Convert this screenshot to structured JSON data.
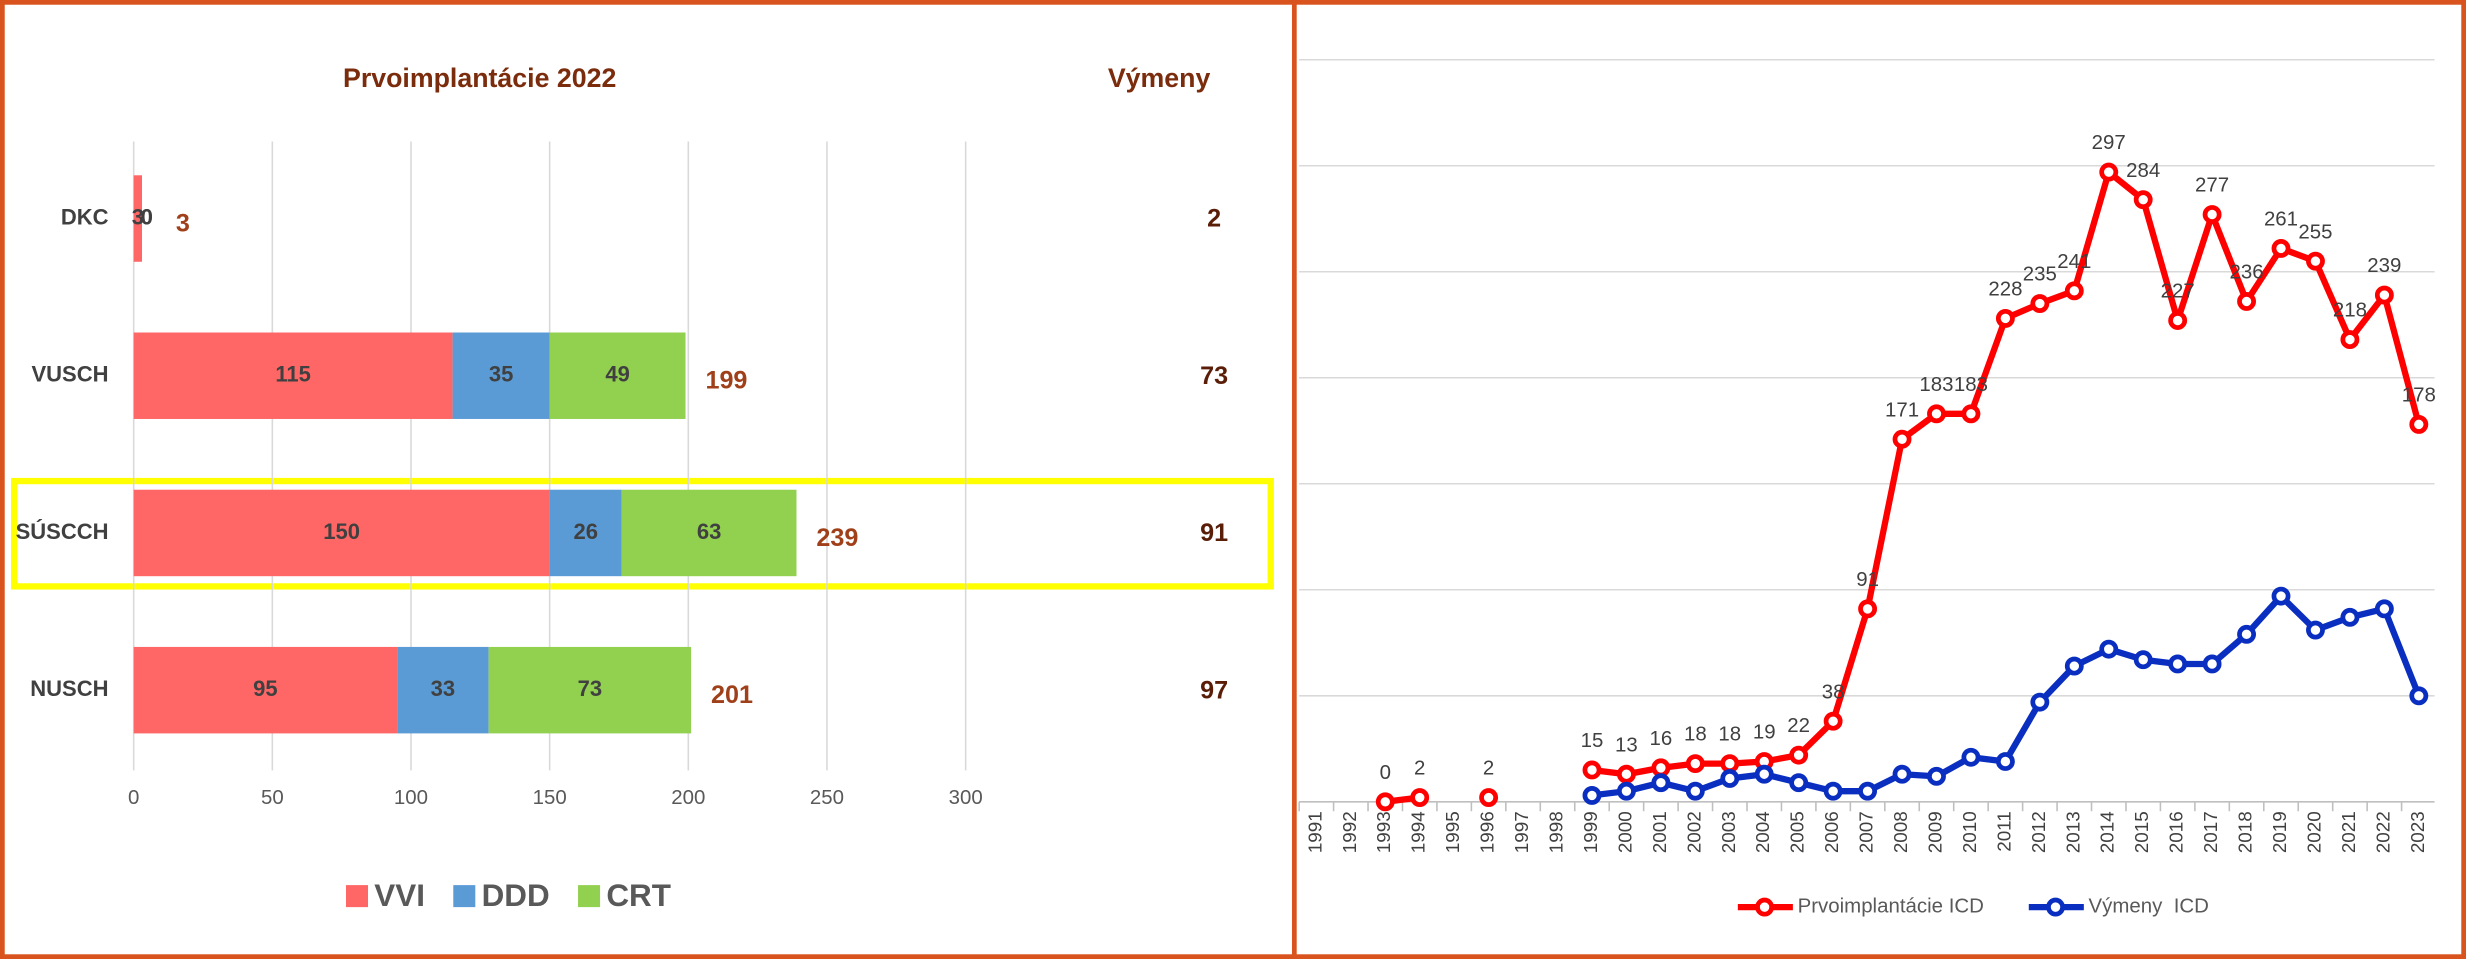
{
  "chart_data": [
    {
      "type": "stacked_bar_h",
      "title": "Prvoimplantácie 2022",
      "categories": [
        "DKC",
        "VUSCH",
        "SÚSCCH",
        "NUSCH"
      ],
      "series": [
        {
          "name": "VVI",
          "color": "#ff6666",
          "values": [
            3,
            115,
            150,
            95
          ]
        },
        {
          "name": "DDD",
          "color": "#5b9bd5",
          "values": [
            0,
            35,
            26,
            33
          ]
        },
        {
          "name": "CRT",
          "color": "#92d050",
          "values": [
            0,
            49,
            63,
            73
          ]
        }
      ],
      "totals": [
        3,
        199,
        239,
        201
      ],
      "replacements_title": "Výmeny",
      "replacements": [
        2,
        73,
        91,
        97
      ],
      "xlim": [
        0,
        300
      ],
      "xticks": [
        0,
        50,
        100,
        150,
        200,
        250,
        300
      ],
      "grid": true,
      "legend": "bottom"
    },
    {
      "type": "line",
      "categories": [
        "1991",
        "1992",
        "1993",
        "1994",
        "1995",
        "1996",
        "1997",
        "1998",
        "1999",
        "2000",
        "2001",
        "2002",
        "2003",
        "2004",
        "2005",
        "2006",
        "2007",
        "2008",
        "2009",
        "2010",
        "2011",
        "2012",
        "2013",
        "2014",
        "2015",
        "2016",
        "2017",
        "2018",
        "2019",
        "2020",
        "2021",
        "2022",
        "2023"
      ],
      "series": [
        {
          "name": "Prvoimplantácie ICD",
          "color": "#ff0000",
          "data_labels": true,
          "values": [
            null,
            null,
            0,
            2,
            null,
            2,
            null,
            null,
            15,
            13,
            16,
            18,
            18,
            19,
            22,
            38,
            91,
            171,
            183,
            183,
            228,
            235,
            241,
            297,
            284,
            227,
            277,
            236,
            261,
            255,
            218,
            239,
            178
          ]
        },
        {
          "name": "Výmeny  ICD",
          "color": "#0a2fc0",
          "data_labels": false,
          "values": [
            null,
            null,
            null,
            null,
            null,
            null,
            null,
            null,
            3,
            5,
            9,
            5,
            11,
            13,
            9,
            5,
            5,
            13,
            12,
            21,
            19,
            47,
            64,
            72,
            67,
            65,
            65,
            79,
            97,
            81,
            87,
            91,
            50
          ]
        }
      ],
      "ylim": [
        0,
        350
      ],
      "yticks": [
        0,
        50,
        100,
        150,
        200,
        250,
        300,
        350
      ],
      "grid": true,
      "legend": "bottom"
    }
  ]
}
